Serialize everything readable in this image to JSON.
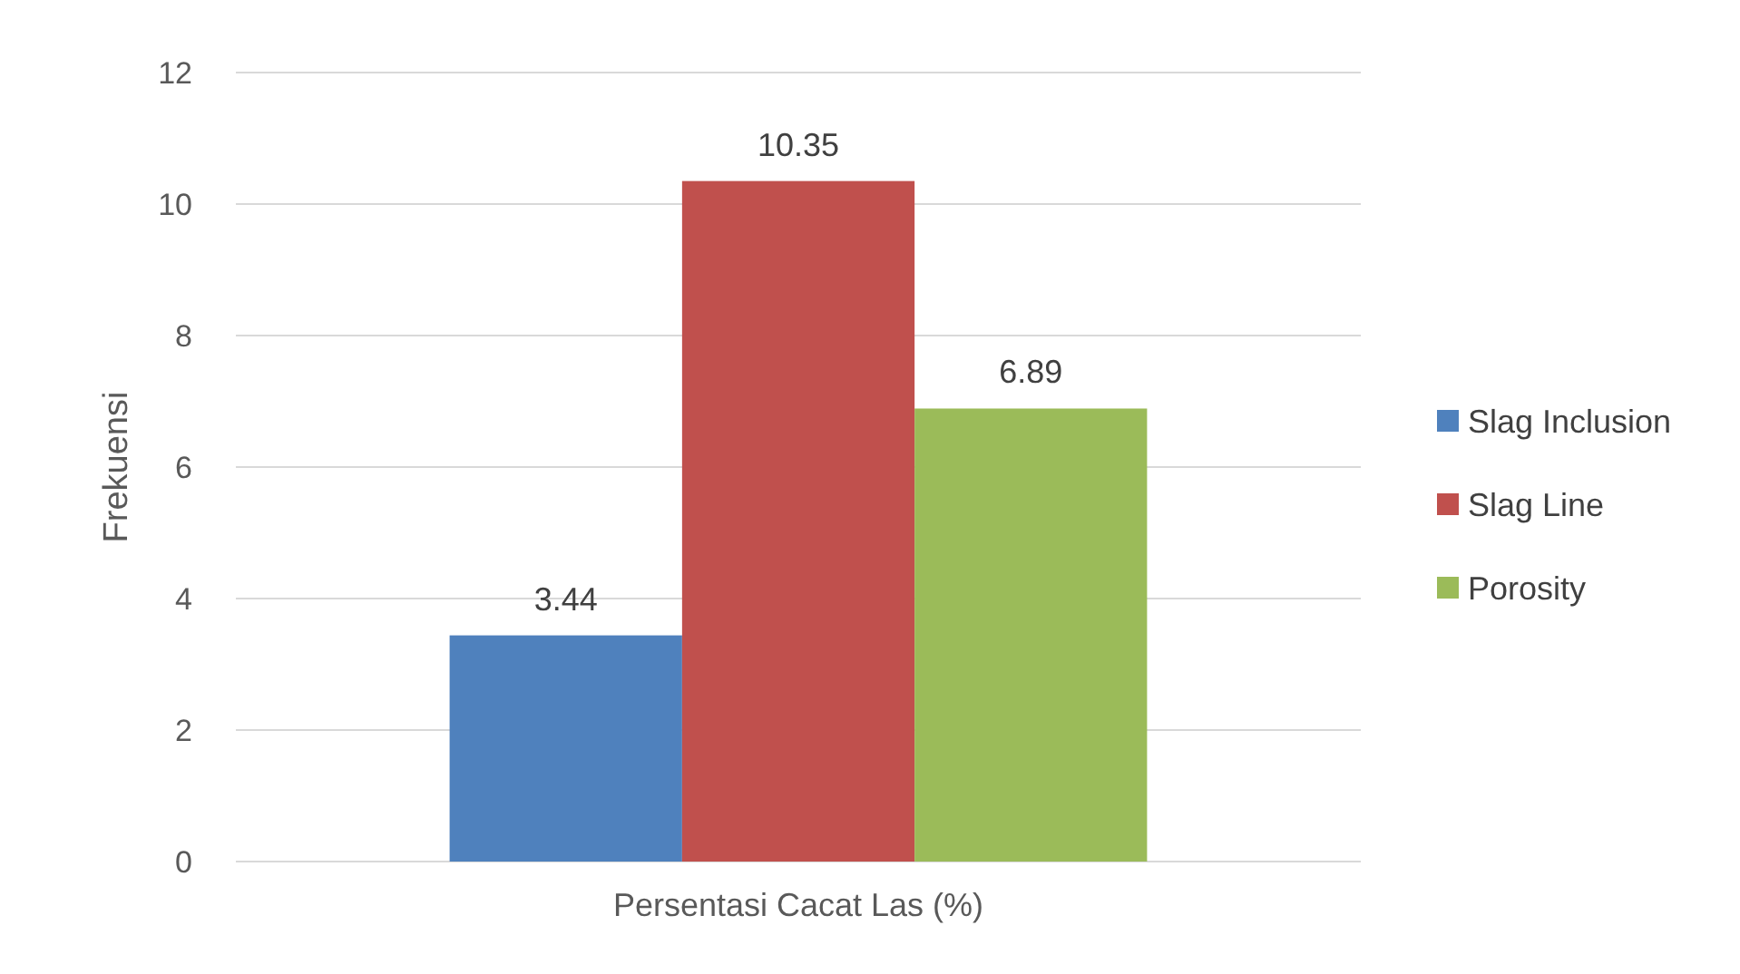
{
  "chart_data": {
    "type": "bar",
    "ylabel": "Frekuensi",
    "categories": [
      "Persentasi Cacat Las (%)"
    ],
    "series": [
      {
        "name": "Slag Inclusion",
        "color": "#4f81bd",
        "values": [
          3.44
        ]
      },
      {
        "name": "Slag Line",
        "color": "#c0504d",
        "values": [
          10.35
        ]
      },
      {
        "name": "Porosity",
        "color": "#9bbb59",
        "values": [
          6.89
        ]
      }
    ],
    "ylim": [
      0,
      12
    ],
    "yticks": [
      0,
      2,
      4,
      6,
      8,
      10,
      12
    ],
    "grid": "y",
    "legend": "right",
    "data_labels": true
  }
}
